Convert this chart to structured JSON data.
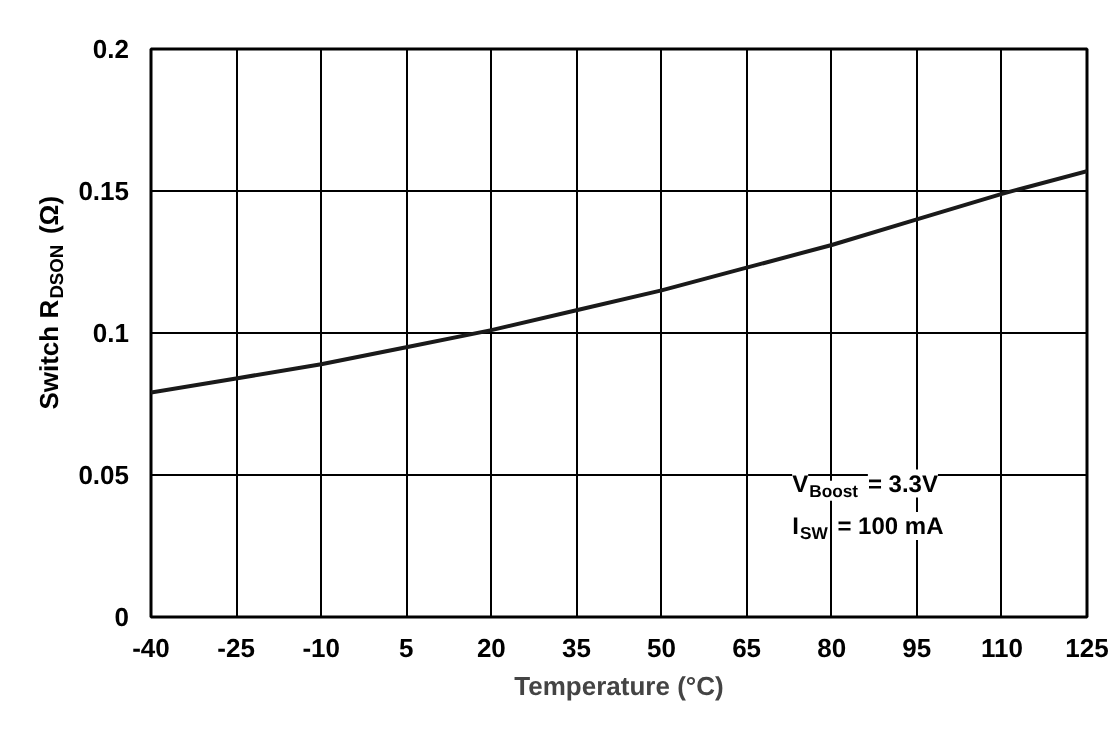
{
  "chart_data": {
    "type": "line",
    "xlabel": "Temperature (°C)",
    "ylabel": "Switch R$_{DSON}$ (Ω)",
    "x": [
      -40,
      -25,
      -10,
      5,
      20,
      35,
      50,
      65,
      80,
      95,
      110,
      125
    ],
    "series": [
      {
        "color": "#1a1a1a",
        "values": [
          0.079,
          0.084,
          0.089,
          0.095,
          0.101,
          0.108,
          0.115,
          0.123,
          0.131,
          0.14,
          0.149,
          0.157
        ]
      }
    ],
    "xlim": [
      -40,
      125
    ],
    "xticks": [
      -40,
      -25,
      -10,
      5,
      20,
      35,
      50,
      65,
      80,
      95,
      110,
      125
    ],
    "ylim": [
      0,
      0.2
    ],
    "yticks": [
      0,
      0.05,
      0.1,
      0.15,
      0.2
    ],
    "grid": true,
    "marker": "none",
    "line_style": "solid",
    "annotations": [
      "V$_{Boost}$ = 3.3V",
      "I$_{SW}$ = 100 mA"
    ]
  }
}
